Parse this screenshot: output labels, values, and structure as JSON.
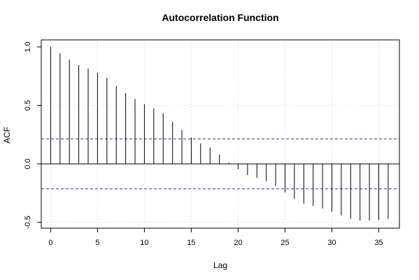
{
  "chart_data": {
    "type": "bar",
    "title": "Autocorrelation Function",
    "xlabel": "Lag",
    "ylabel": "ACF",
    "xlim": [
      -1,
      37.2
    ],
    "ylim": [
      -0.55,
      1.06
    ],
    "x_ticks": [
      0,
      5,
      10,
      15,
      20,
      25,
      30,
      35
    ],
    "y_ticks": [
      -0.5,
      0.0,
      0.5,
      1.0
    ],
    "y_tick_labels": [
      "-0.5",
      "0.0",
      "0.5",
      "1.0"
    ],
    "grid": true,
    "confidence_bounds": [
      0.213,
      -0.213
    ],
    "lags": [
      0,
      1,
      2,
      3,
      4,
      5,
      6,
      7,
      8,
      9,
      10,
      11,
      12,
      13,
      14,
      15,
      16,
      17,
      18,
      19,
      20,
      21,
      22,
      23,
      24,
      25,
      26,
      27,
      28,
      29,
      30,
      31,
      32,
      33,
      34,
      35,
      36
    ],
    "values": [
      1.0,
      0.945,
      0.89,
      0.845,
      0.815,
      0.78,
      0.735,
      0.665,
      0.605,
      0.555,
      0.51,
      0.475,
      0.435,
      0.36,
      0.29,
      0.225,
      0.175,
      0.14,
      0.08,
      0.01,
      -0.045,
      -0.095,
      -0.12,
      -0.15,
      -0.19,
      -0.245,
      -0.3,
      -0.34,
      -0.36,
      -0.38,
      -0.41,
      -0.44,
      -0.47,
      -0.485,
      -0.485,
      -0.48,
      -0.47
    ]
  },
  "colors": {
    "bars": "#000000",
    "bounds": "#3333aa",
    "grid": "#d3d3d3",
    "axis": "#000000"
  }
}
